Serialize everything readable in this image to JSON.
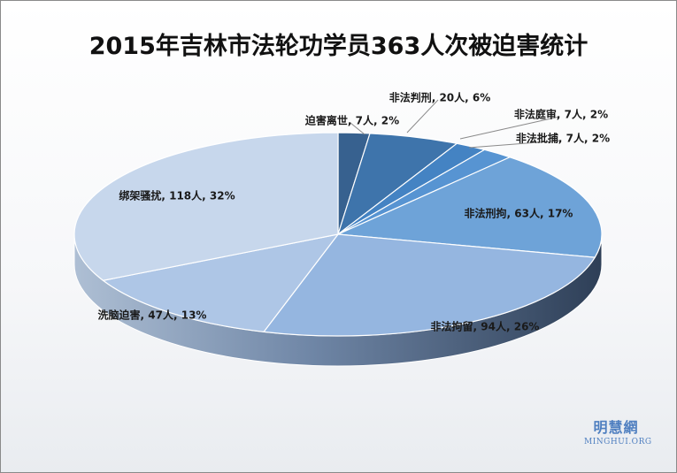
{
  "chart_data": {
    "type": "pie",
    "title": "2015年吉林市法轮功学员363人次被迫害统计",
    "total": 363,
    "slices": [
      {
        "label": "迫害离世",
        "value": 7,
        "unit": "人",
        "percent": "2%",
        "color": "#37618f"
      },
      {
        "label": "非法判刑",
        "value": 20,
        "unit": "人",
        "percent": "6%",
        "color": "#3e74ab"
      },
      {
        "label": "非法庭审",
        "value": 7,
        "unit": "人",
        "percent": "2%",
        "color": "#4483c3"
      },
      {
        "label": "非法批捕",
        "value": 7,
        "unit": "人",
        "percent": "2%",
        "color": "#5794d2"
      },
      {
        "label": "非法刑拘",
        "value": 63,
        "unit": "人",
        "percent": "17%",
        "color": "#6ea3d8"
      },
      {
        "label": "非法拘留",
        "value": 94,
        "unit": "人",
        "percent": "26%",
        "color": "#95b6e0"
      },
      {
        "label": "洗脑迫害",
        "value": 47,
        "unit": "人",
        "percent": "13%",
        "color": "#aec6e6"
      },
      {
        "label": "绑架骚扰",
        "value": 118,
        "unit": "人",
        "percent": "32%",
        "color": "#c7d7ec"
      }
    ]
  },
  "watermark": {
    "cn": "明慧網",
    "en": "MINGHUI.ORG"
  }
}
